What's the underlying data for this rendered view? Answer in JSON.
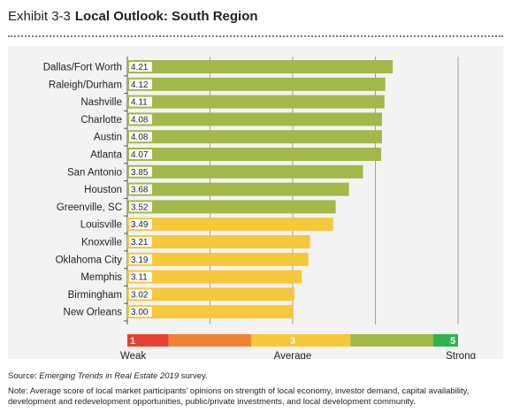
{
  "exhibit": {
    "number": "Exhibit 3-3",
    "title": "Local Outlook: South Region"
  },
  "chart_data": {
    "type": "bar",
    "orientation": "horizontal",
    "categories": [
      "Dallas/Fort Worth",
      "Raleigh/Durham",
      "Nashville",
      "Charlotte",
      "Austin",
      "Atlanta",
      "San Antonio",
      "Houston",
      "Greenville, SC",
      "Louisville",
      "Knoxville",
      "Oklahoma City",
      "Memphis",
      "Birmingham",
      "New Orleans"
    ],
    "values": [
      4.21,
      4.12,
      4.11,
      4.08,
      4.08,
      4.07,
      3.85,
      3.68,
      3.52,
      3.49,
      3.21,
      3.19,
      3.11,
      3.02,
      3.0
    ],
    "value_labels": [
      "4.21",
      "4.12",
      "4.11",
      "4.08",
      "4.08",
      "4.07",
      "3.85",
      "3.68",
      "3.52",
      "3.49",
      "3.21",
      "3.19",
      "3.11",
      "3.02",
      "3.00"
    ],
    "xlim": [
      1,
      5
    ],
    "grid": true,
    "bar_colors": {
      "above_threshold": "#a1b84a",
      "below_threshold": "#f6c83a"
    },
    "color_threshold": 3.5,
    "scale": {
      "segments": [
        {
          "from": 1,
          "to": 1.5,
          "color": "#e8412f"
        },
        {
          "from": 1.5,
          "to": 2.5,
          "color": "#ef8233"
        },
        {
          "from": 2.5,
          "to": 3.7,
          "color": "#f6c83a"
        },
        {
          "from": 3.7,
          "to": 4.7,
          "color": "#a1b84a"
        },
        {
          "from": 4.7,
          "to": 5,
          "color": "#2eb34e"
        }
      ],
      "marks": [
        {
          "value": 1,
          "label": "1"
        },
        {
          "value": 3,
          "label": "3"
        },
        {
          "value": 5,
          "label": "5"
        }
      ],
      "captions": [
        {
          "value": 1,
          "label": "Weak"
        },
        {
          "value": 3,
          "label": "Average"
        },
        {
          "value": 5,
          "label": "Strong"
        }
      ]
    }
  },
  "footer": {
    "source_prefix": "Source: ",
    "source_title": "Emerging Trends in Real Estate 2019",
    "source_suffix": " survey.",
    "note": "Note: Average score of local market participants’ opinions on strength of local economy, investor demand, capital availability, development and redevelopment opportunities, public/private investments, and local development community."
  }
}
